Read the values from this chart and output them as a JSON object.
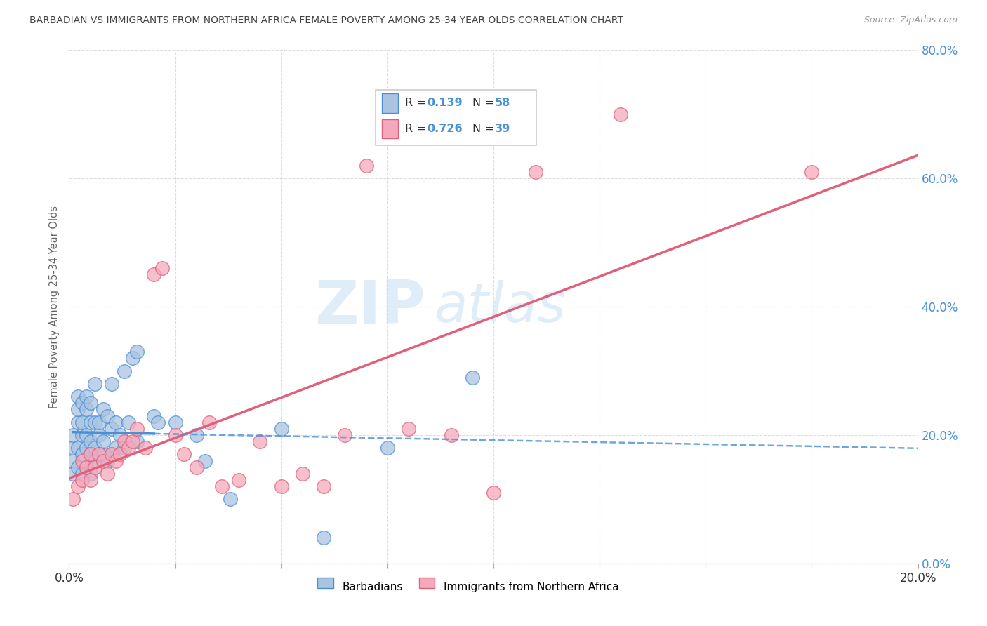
{
  "title": "BARBADIAN VS IMMIGRANTS FROM NORTHERN AFRICA FEMALE POVERTY AMONG 25-34 YEAR OLDS CORRELATION CHART",
  "source": "Source: ZipAtlas.com",
  "ylabel": "Female Poverty Among 25-34 Year Olds",
  "xlim": [
    0.0,
    0.2
  ],
  "ylim": [
    0.0,
    0.8
  ],
  "xtick_show": [
    0.0,
    0.2
  ],
  "yticks": [
    0.0,
    0.2,
    0.4,
    0.6,
    0.8
  ],
  "ytick_grid": [
    0.0,
    0.2,
    0.4,
    0.6,
    0.8
  ],
  "barbadian_R": 0.139,
  "barbadian_N": 58,
  "northern_africa_R": 0.726,
  "northern_africa_N": 39,
  "barbadian_color": "#aac4e0",
  "northern_africa_color": "#f5a8bc",
  "barbadian_line_color": "#4a90d9",
  "northern_africa_line_color": "#e0607a",
  "watermark_zip": "ZIP",
  "watermark_atlas": "atlas",
  "background_color": "#ffffff",
  "barbadian_x": [
    0.001,
    0.001,
    0.001,
    0.001,
    0.002,
    0.002,
    0.002,
    0.002,
    0.002,
    0.003,
    0.003,
    0.003,
    0.003,
    0.003,
    0.004,
    0.004,
    0.004,
    0.004,
    0.004,
    0.005,
    0.005,
    0.005,
    0.005,
    0.005,
    0.006,
    0.006,
    0.006,
    0.006,
    0.007,
    0.007,
    0.007,
    0.008,
    0.008,
    0.008,
    0.009,
    0.009,
    0.01,
    0.01,
    0.01,
    0.011,
    0.011,
    0.012,
    0.013,
    0.013,
    0.014,
    0.015,
    0.016,
    0.016,
    0.02,
    0.021,
    0.025,
    0.03,
    0.032,
    0.038,
    0.05,
    0.06,
    0.075,
    0.095
  ],
  "barbadian_y": [
    0.16,
    0.18,
    0.2,
    0.14,
    0.15,
    0.18,
    0.22,
    0.24,
    0.26,
    0.14,
    0.17,
    0.2,
    0.22,
    0.25,
    0.15,
    0.18,
    0.2,
    0.24,
    0.26,
    0.14,
    0.17,
    0.19,
    0.22,
    0.25,
    0.16,
    0.18,
    0.22,
    0.28,
    0.17,
    0.2,
    0.22,
    0.17,
    0.19,
    0.24,
    0.16,
    0.23,
    0.17,
    0.21,
    0.28,
    0.18,
    0.22,
    0.2,
    0.18,
    0.3,
    0.22,
    0.32,
    0.33,
    0.19,
    0.23,
    0.22,
    0.22,
    0.2,
    0.16,
    0.1,
    0.21,
    0.04,
    0.18,
    0.29
  ],
  "northern_africa_x": [
    0.001,
    0.002,
    0.003,
    0.003,
    0.004,
    0.005,
    0.005,
    0.006,
    0.007,
    0.008,
    0.009,
    0.01,
    0.011,
    0.012,
    0.013,
    0.014,
    0.015,
    0.016,
    0.018,
    0.02,
    0.022,
    0.025,
    0.027,
    0.03,
    0.033,
    0.036,
    0.04,
    0.045,
    0.05,
    0.055,
    0.06,
    0.065,
    0.07,
    0.08,
    0.09,
    0.1,
    0.11,
    0.13,
    0.175
  ],
  "northern_africa_y": [
    0.1,
    0.12,
    0.13,
    0.16,
    0.15,
    0.13,
    0.17,
    0.15,
    0.17,
    0.16,
    0.14,
    0.17,
    0.16,
    0.17,
    0.19,
    0.18,
    0.19,
    0.21,
    0.18,
    0.45,
    0.46,
    0.2,
    0.17,
    0.15,
    0.22,
    0.12,
    0.13,
    0.19,
    0.12,
    0.14,
    0.12,
    0.2,
    0.62,
    0.21,
    0.2,
    0.11,
    0.61,
    0.7,
    0.61
  ],
  "legend_R_color": "#4a90d9",
  "legend_N_color": "#4a90d9",
  "grid_color": "#dddddd",
  "tick_label_color": "#4a90d9",
  "title_color": "#444444",
  "ylabel_color": "#666666"
}
